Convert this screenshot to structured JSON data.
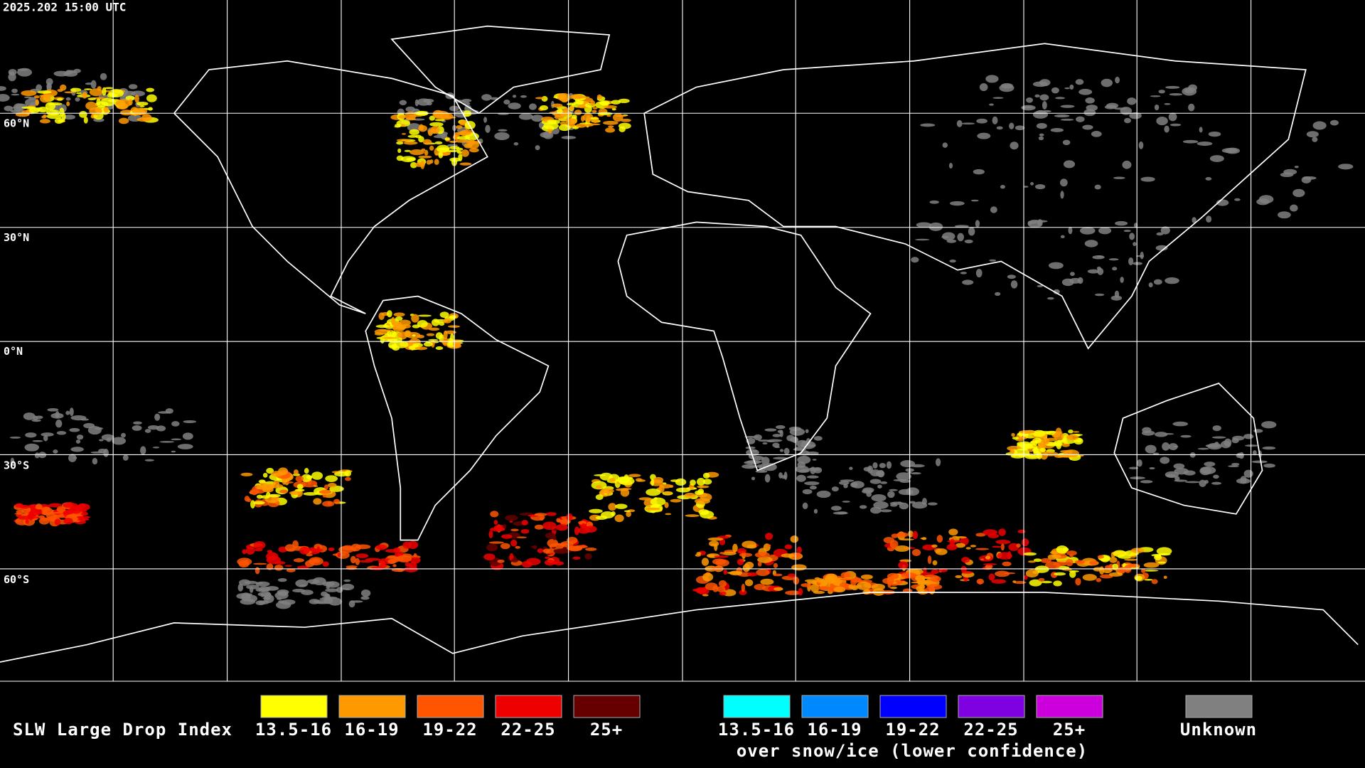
{
  "timestamp": "2025.202 15:00 UTC",
  "latitude_labels": [
    "60°N",
    "30°N",
    "0°N",
    "30°S",
    "60°S"
  ],
  "legend": {
    "title": "SLW Large Drop Index",
    "groups": [
      {
        "items": [
          {
            "label": "13.5-16",
            "color": "#ffff00"
          },
          {
            "label": "16-19",
            "color": "#ff9900"
          },
          {
            "label": "19-22",
            "color": "#ff5500"
          },
          {
            "label": "22-25",
            "color": "#ee0000"
          },
          {
            "label": "25+",
            "color": "#660000"
          }
        ]
      },
      {
        "items": [
          {
            "label": "13.5-16",
            "color": "#00ffff"
          },
          {
            "label": "16-19",
            "color": "#0088ff"
          },
          {
            "label": "19-22",
            "color": "#0000ff"
          },
          {
            "label": "22-25",
            "color": "#7f00e0"
          },
          {
            "label": "25+",
            "color": "#cc00dd"
          }
        ],
        "caption": "over snow/ice (lower confidence)"
      }
    ],
    "unknown": {
      "label": "Unknown",
      "color": "#808080"
    }
  }
}
